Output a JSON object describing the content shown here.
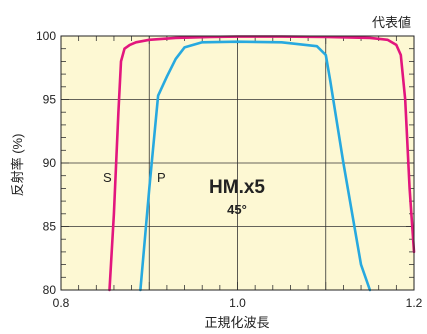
{
  "chart_data": {
    "type": "line",
    "corner_note": "代表値",
    "xlabel": "正規化波長",
    "ylabel": "反射率 (%)",
    "xlim": [
      0.8,
      1.2
    ],
    "ylim": [
      80,
      100
    ],
    "xticks": [
      {
        "value": 0.8,
        "label": "0.8"
      },
      {
        "value": 1.0,
        "label": "1.0"
      },
      {
        "value": 1.2,
        "label": "1.2"
      }
    ],
    "yticks": [
      {
        "value": 80,
        "label": "80"
      },
      {
        "value": 85,
        "label": "85"
      },
      {
        "value": 90,
        "label": "90"
      },
      {
        "value": 95,
        "label": "95"
      },
      {
        "value": 100,
        "label": "100"
      }
    ],
    "grid_x": [
      0.8,
      0.9,
      1.0,
      1.1,
      1.2
    ],
    "grid_y": [
      80,
      85,
      90,
      95,
      100
    ],
    "product_label": "HM.x5",
    "angle_label": "45°",
    "plot_background": "#fdf8d3",
    "series": [
      {
        "name": "S",
        "color": "#e2167e",
        "x": [
          0.855,
          0.86,
          0.865,
          0.868,
          0.872,
          0.878,
          0.885,
          0.9,
          0.93,
          0.97,
          1.0,
          1.05,
          1.1,
          1.15,
          1.17,
          1.18,
          1.185,
          1.19,
          1.195,
          1.2
        ],
        "y": [
          80.0,
          86.0,
          94.0,
          98.0,
          99.0,
          99.3,
          99.5,
          99.7,
          99.85,
          99.93,
          99.95,
          99.95,
          99.93,
          99.85,
          99.7,
          99.3,
          98.5,
          95.0,
          88.0,
          83.0
        ]
      },
      {
        "name": "P",
        "color": "#27a9df",
        "x": [
          0.89,
          0.9,
          0.91,
          0.92,
          0.93,
          0.94,
          0.96,
          1.0,
          1.05,
          1.09,
          1.1,
          1.105,
          1.12,
          1.14,
          1.15
        ],
        "y": [
          80.0,
          88.0,
          95.3,
          96.8,
          98.2,
          99.1,
          99.5,
          99.55,
          99.5,
          99.2,
          98.5,
          96.5,
          90.0,
          82.0,
          80.0
        ]
      }
    ]
  }
}
